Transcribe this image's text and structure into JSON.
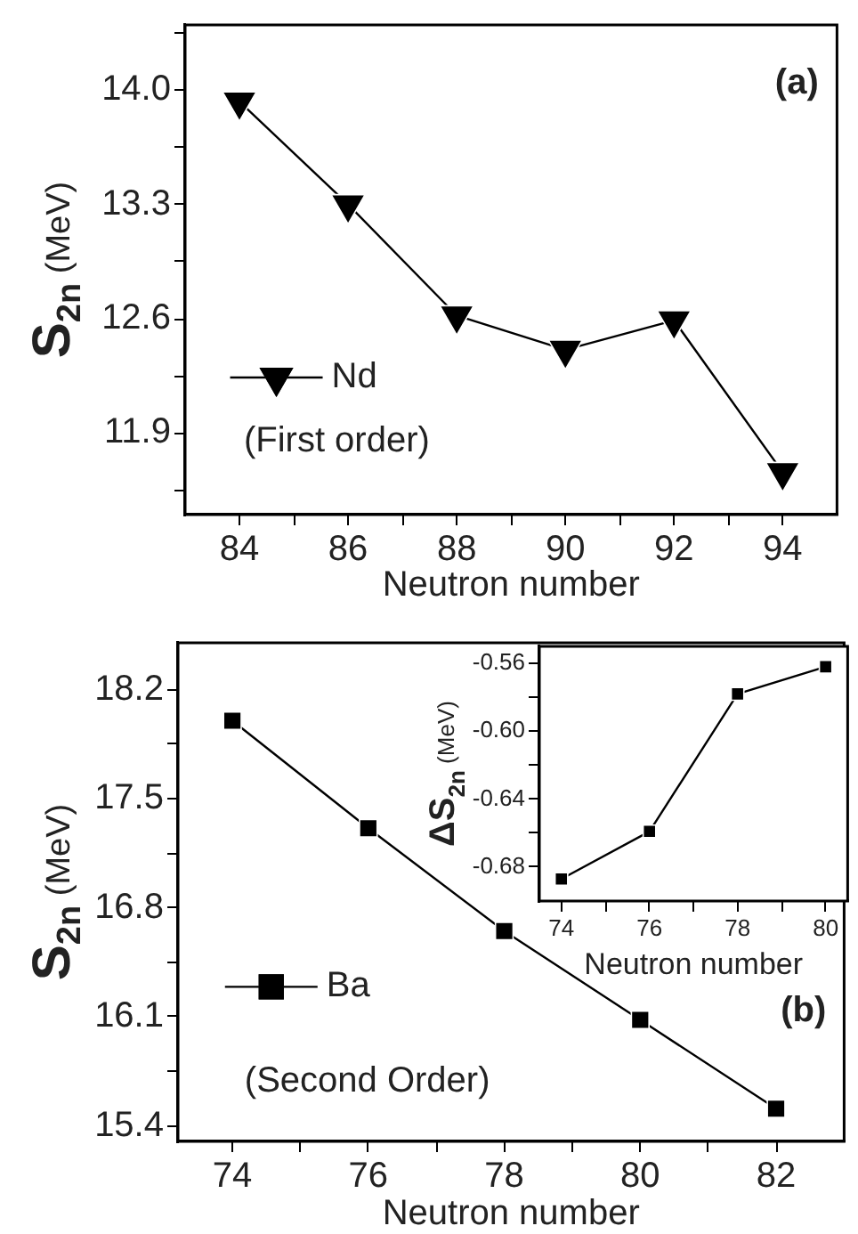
{
  "chart_data": [
    {
      "type": "line",
      "annotations": [
        "(a)",
        "(First order)"
      ],
      "xlabel": "Neutron number",
      "ylabel": "S$_{2n}$ (MeV)",
      "x": [
        84,
        86,
        88,
        90,
        92,
        94
      ],
      "series": [
        {
          "name": "Nd",
          "color": "#000000",
          "values": [
            13.93,
            13.3,
            12.62,
            12.41,
            12.59,
            11.66
          ]
        }
      ],
      "xlim": [
        83,
        95
      ],
      "xticks": [
        84,
        {
          "value": 85,
          "label": null
        },
        86,
        {
          "value": 87,
          "label": null
        },
        88,
        {
          "value": 89,
          "label": null
        },
        90,
        {
          "value": 91,
          "label": null
        },
        92,
        {
          "value": 93,
          "label": null
        },
        94
      ],
      "ylim": [
        11.4,
        14.4
      ],
      "yticks": [
        {
          "value": 11.55,
          "label": null
        },
        11.9,
        {
          "value": 12.25,
          "label": null
        },
        12.6,
        {
          "value": 12.95,
          "label": null
        },
        13.3,
        {
          "value": 13.65,
          "label": null
        },
        {
          "value": 14,
          "label": "14.0"
        },
        {
          "value": 14.35,
          "label": null
        }
      ],
      "grid": false,
      "legend": "left",
      "marker": "triangle",
      "line_style": "solid"
    },
    {
      "type": "line",
      "annotations": [
        "(b)",
        "(Second Order)"
      ],
      "xlabel": "Neutron number",
      "ylabel": "S$_{2n}$ (MeV)",
      "x": [
        74,
        76,
        78,
        80,
        82
      ],
      "series": [
        {
          "name": "Ba",
          "color": "#000000",
          "values": [
            18.0,
            17.31,
            16.65,
            16.08,
            15.51
          ]
        }
      ],
      "xlim": [
        73.2,
        83
      ],
      "xticks": [
        74,
        {
          "value": 75,
          "label": null
        },
        76,
        {
          "value": 77,
          "label": null
        },
        78,
        {
          "value": 79,
          "label": null
        },
        80,
        {
          "value": 81,
          "label": null
        },
        82
      ],
      "ylim": [
        15.3,
        18.5
      ],
      "yticks": [
        15.4,
        {
          "value": 15.75,
          "label": null
        },
        16.1,
        {
          "value": 16.45,
          "label": null
        },
        16.8,
        {
          "value": 17.15,
          "label": null
        },
        17.5,
        {
          "value": 17.85,
          "label": null
        },
        18.2
      ],
      "grid": false,
      "legend": "left",
      "marker": "square",
      "line_style": "solid"
    },
    {
      "type": "line",
      "xlabel": "Neutron number",
      "ylabel": "ΔS$_{2n}$ (MeV)",
      "x": [
        74,
        76,
        78,
        80
      ],
      "series": [
        {
          "color": "#000000",
          "values": [
            -0.687,
            -0.659,
            -0.578,
            -0.562
          ]
        }
      ],
      "xlim": [
        73.5,
        80.5
      ],
      "xticks": [
        74,
        {
          "value": 75,
          "label": null
        },
        76,
        {
          "value": 77,
          "label": null
        },
        78,
        {
          "value": 79,
          "label": null
        },
        80
      ],
      "ylim": [
        -0.7,
        -0.55
      ],
      "yticks": [
        {
          "value": -0.68,
          "label": "-0.68"
        },
        {
          "value": -0.66,
          "label": null
        },
        {
          "value": -0.64,
          "label": "-0.64"
        },
        {
          "value": -0.62,
          "label": null
        },
        {
          "value": -0.6,
          "label": "-0.60"
        },
        {
          "value": -0.58,
          "label": null
        },
        {
          "value": -0.56,
          "label": "-0.56"
        }
      ],
      "grid": false,
      "marker": "square",
      "line_style": "solid"
    }
  ]
}
